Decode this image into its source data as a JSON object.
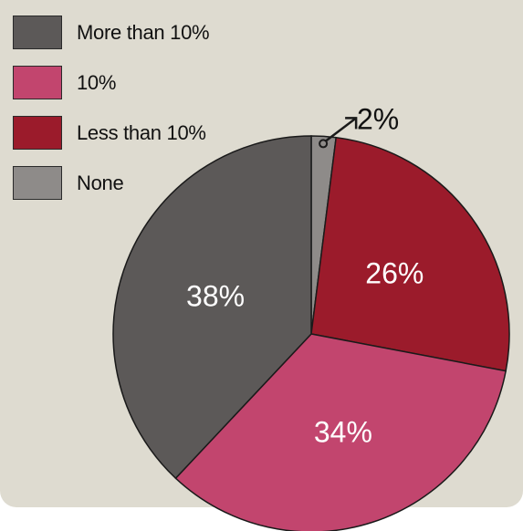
{
  "chart_data": {
    "type": "pie",
    "series": [
      {
        "name": "More than 10%",
        "value": 38,
        "label": "38%",
        "color": "#5c5958",
        "label_color": "#ffffff"
      },
      {
        "name": "10%",
        "value": 34,
        "label": "34%",
        "color": "#c2456e",
        "label_color": "#ffffff"
      },
      {
        "name": "Less than 10%",
        "value": 26,
        "label": "26%",
        "color": "#9b1b2b",
        "label_color": "#ffffff"
      },
      {
        "name": "None",
        "value": 2,
        "label": "2%",
        "color": "#8e8b89",
        "label_color": "#111111"
      }
    ],
    "legend_placement": "top-left",
    "title": ""
  },
  "colors": {
    "background": "#dedbd0",
    "outline": "#1a1a1a"
  }
}
